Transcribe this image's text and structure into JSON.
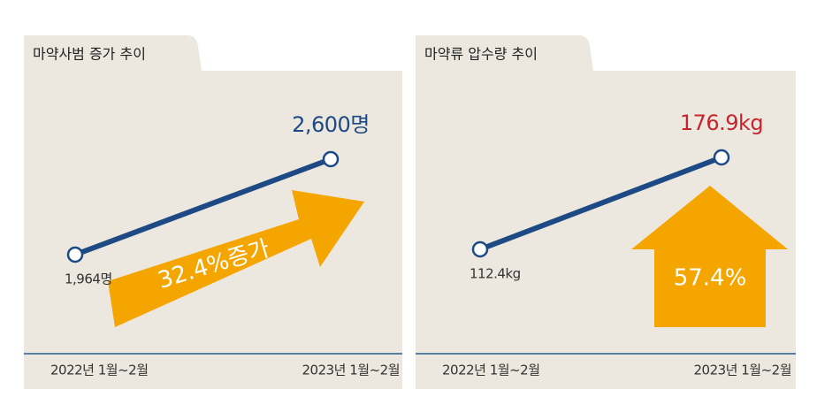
{
  "chart_data": [
    {
      "type": "line",
      "title": "마약사범 증가 추이",
      "categories": [
        "2022년 1월~2월",
        "2023년 1월~2월"
      ],
      "values": [
        1964,
        2600
      ],
      "value_labels": [
        "1,964명",
        "2,600명"
      ],
      "color": "#1d4a84",
      "label_colors": [
        "#333333",
        "#1d4a84"
      ],
      "annotation": "32.4%증가"
    },
    {
      "type": "line",
      "title": "마약류 압수량 추이",
      "categories": [
        "2022년 1월~2월",
        "2023년 1월~2월"
      ],
      "values": [
        112.4,
        176.9
      ],
      "value_labels": [
        "112.4kg",
        "176.9kg"
      ],
      "color": "#1d4a84",
      "label_colors": [
        "#333333",
        "#c4262e"
      ],
      "annotation": "57.4%"
    }
  ]
}
